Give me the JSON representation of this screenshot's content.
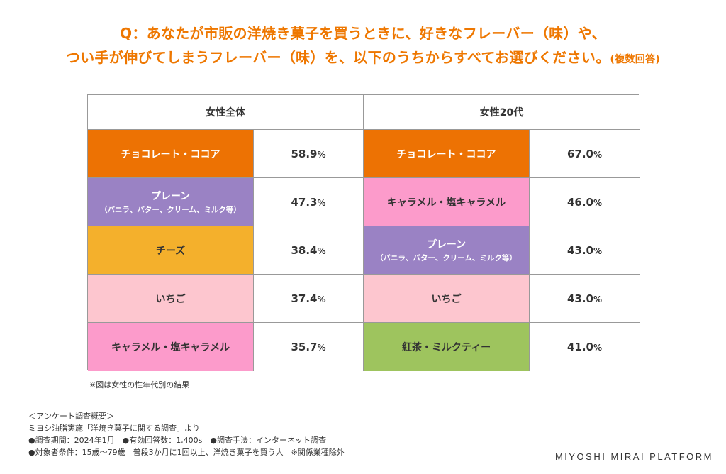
{
  "title": {
    "line1": "Q：あなたが市販の洋焼き菓子を買うときに、好きなフレーバー（味）や、",
    "line2": "つい手が伸びてしまうフレーバー（味）を、以下のうちからすべてお選びください。",
    "line2_note": "(複数回答)"
  },
  "headers": {
    "left": "女性全体",
    "right": "女性20代"
  },
  "colors": {
    "orange": "#ed7203",
    "purple": "#9a82c4",
    "yellow": "#f4b02c",
    "light_pink": "#fdc6cf",
    "pink": "#fc9bcb",
    "green": "#9ec45e"
  },
  "rows": [
    {
      "left": {
        "label": "チョコレート・ココア",
        "sub": "",
        "value": "58.9",
        "unit": "%"
      },
      "right": {
        "label": "チョコレート・ココア",
        "sub": "",
        "value": "67.0",
        "unit": "%"
      }
    },
    {
      "left": {
        "label": "プレーン",
        "sub": "（バニラ、バター、クリーム、ミルク等）",
        "value": "47.3",
        "unit": "%"
      },
      "right": {
        "label": "キャラメル・塩キャラメル",
        "sub": "",
        "value": "46.0",
        "unit": "%"
      }
    },
    {
      "left": {
        "label": "チーズ",
        "sub": "",
        "value": "38.4",
        "unit": "%"
      },
      "right": {
        "label": "プレーン",
        "sub": "（バニラ、バター、クリーム、ミルク等）",
        "value": "43.0",
        "unit": "%"
      }
    },
    {
      "left": {
        "label": "いちご",
        "sub": "",
        "value": "37.4",
        "unit": "%"
      },
      "right": {
        "label": "いちご",
        "sub": "",
        "value": "43.0",
        "unit": "%"
      }
    },
    {
      "left": {
        "label": "キャラメル・塩キャラメル",
        "sub": "",
        "value": "35.7",
        "unit": "%"
      },
      "right": {
        "label": "紅茶・ミルクティー",
        "sub": "",
        "value": "41.0",
        "unit": "%"
      }
    }
  ],
  "footnote": "※図は女性の性年代別の結果",
  "survey": {
    "heading": "＜アンケート調査概要＞",
    "source": "ミヨシ油脂実施「洋焼き菓子に関する調査」より",
    "line_period": "●調査期間：2024年1月　●有効回答数：1,400s　●調査手法：インターネット調査",
    "line_target": "●対象者条件：15歳〜79歳　普段3か月に1回以上、洋焼き菓子を買う人　※関係業種除外"
  },
  "brand": "MIYOSHI MIRAI PLATFORM"
}
